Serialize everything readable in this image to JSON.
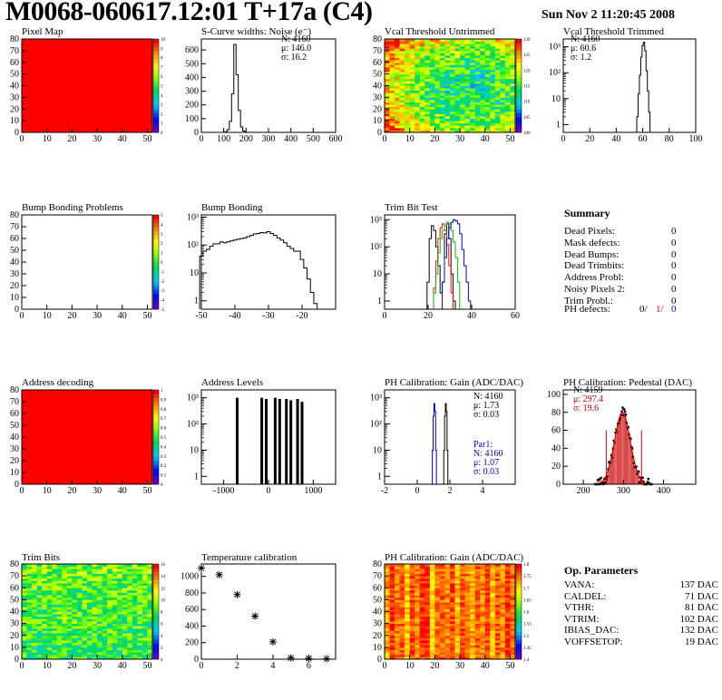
{
  "header": {
    "title": "M0068-060617.12:01 T+17a (C4)",
    "date": "Sun Nov  2 11:20:45 2008"
  },
  "colors": {
    "red": "#ff0000",
    "green_line": "#00c000",
    "blue_line": "#0000cc",
    "fit_red": "#cc0000"
  },
  "palette_names": [
    "purple",
    "blue",
    "cyan",
    "green",
    "yellow",
    "orange",
    "red"
  ],
  "chart_data": [
    {
      "id": "pixel-map",
      "type": "heatmap",
      "title": "Pixel Map",
      "xlim": [
        0,
        52
      ],
      "ylim": [
        0,
        80
      ],
      "xticks": [
        0,
        10,
        20,
        30,
        40,
        50
      ],
      "yticks": [
        0,
        10,
        20,
        30,
        40,
        50,
        60,
        70,
        80
      ],
      "fill": "uniform-max",
      "zlim": [
        0,
        10
      ],
      "zticks": [
        "0",
        "1",
        "2",
        "3",
        "4",
        "5",
        "6",
        "7",
        "8",
        "9",
        "10"
      ]
    },
    {
      "id": "scurve-noise",
      "type": "histogram",
      "title": "S-Curve widths: Noise (e⁻)",
      "xlim": [
        0,
        600
      ],
      "ylim": [
        0,
        680
      ],
      "log_y": false,
      "xticks": [
        0,
        100,
        200,
        300,
        400,
        500,
        600
      ],
      "yticks": [
        0,
        100,
        200,
        300,
        400,
        500,
        600
      ],
      "series": [
        {
          "x": [
            100,
            110,
            120,
            130,
            140,
            150,
            160,
            170,
            180,
            190,
            200
          ],
          "y": [
            0,
            5,
            20,
            80,
            280,
            640,
            420,
            160,
            40,
            10,
            0
          ]
        }
      ],
      "stats": {
        "entries": "N: 4160",
        "mean": "μ: 146.0",
        "sigma": "σ: 16.2"
      }
    },
    {
      "id": "vcal-untrimmed",
      "type": "heatmap",
      "title": "Vcal Threshold Untrimmed",
      "xlim": [
        0,
        52
      ],
      "ylim": [
        0,
        80
      ],
      "xticks": [
        0,
        10,
        20,
        30,
        40,
        50
      ],
      "yticks": [
        0,
        10,
        20,
        30,
        40,
        50,
        60,
        70,
        80
      ],
      "fill": "noisy-center-low",
      "zlim": [
        95,
        130
      ],
      "zticks": [
        "100",
        "105",
        "110",
        "115",
        "120",
        "125",
        "130"
      ]
    },
    {
      "id": "vcal-trimmed",
      "type": "histogram",
      "title": "Vcal Threshold Trimmed",
      "xlim": [
        0,
        100
      ],
      "ylim": [
        0.5,
        2000
      ],
      "log_y": true,
      "xticks": [
        0,
        20,
        40,
        60,
        80,
        100
      ],
      "ytick_labels": [
        "1",
        "10",
        "10²",
        "10³"
      ],
      "series": [
        {
          "x": [
            55,
            56,
            57,
            58,
            59,
            60,
            61,
            62,
            63,
            64,
            65,
            66
          ],
          "y": [
            0.5,
            2,
            15,
            80,
            400,
            1100,
            1500,
            700,
            120,
            20,
            3,
            0.5
          ]
        }
      ],
      "stats": {
        "entries": "N: 4160",
        "mean": "μ: 60.6",
        "sigma": "σ:  1.2"
      }
    },
    {
      "id": "bump-problems",
      "type": "heatmap",
      "title": "Bump Bonding Problems",
      "xlim": [
        0,
        52
      ],
      "ylim": [
        0,
        80
      ],
      "xticks": [
        0,
        10,
        20,
        30,
        40,
        50
      ],
      "yticks": [
        0,
        10,
        20,
        30,
        40,
        50,
        60,
        70,
        80
      ],
      "fill": "empty",
      "zlim": [
        -5,
        5
      ],
      "zticks": [
        "-5",
        "-4",
        "-3",
        "-2",
        "-1",
        "0",
        "1",
        "2",
        "3",
        "4",
        "5"
      ]
    },
    {
      "id": "bump-bonding",
      "type": "histogram",
      "title": "Bump Bonding",
      "xlim": [
        -50,
        -10
      ],
      "ylim": [
        0.5,
        1200
      ],
      "log_y": true,
      "xticks": [
        -50,
        -40,
        -30,
        -20
      ],
      "ytick_labels": [
        "1",
        "10",
        "10²",
        "10³"
      ],
      "series": [
        {
          "x": [
            -50,
            -49,
            -48,
            -47,
            -46,
            -45,
            -44,
            -43,
            -42,
            -41,
            -40,
            -39,
            -38,
            -37,
            -36,
            -35,
            -34,
            -33,
            -32,
            -31,
            -30,
            -29,
            -28,
            -27,
            -26,
            -25,
            -24,
            -23,
            -22,
            -21,
            -20,
            -19,
            -18,
            -17,
            -16,
            -15,
            -14
          ],
          "y": [
            40,
            60,
            70,
            90,
            110,
            110,
            130,
            120,
            130,
            140,
            150,
            160,
            170,
            180,
            200,
            220,
            250,
            260,
            280,
            270,
            300,
            260,
            220,
            180,
            150,
            120,
            90,
            75,
            60,
            60,
            30,
            15,
            6,
            2,
            0.8,
            0.5,
            0
          ]
        }
      ]
    },
    {
      "id": "trim-bit-test",
      "type": "histogram",
      "title": "Trim Bit Test",
      "xlim": [
        0,
        60
      ],
      "ylim": [
        0.5,
        1500
      ],
      "log_y": true,
      "xticks": [
        0,
        20,
        40,
        60
      ],
      "ytick_labels": [
        "1",
        "10",
        "10²",
        "10³"
      ],
      "series": [
        {
          "color": "black",
          "x": [
            19,
            20,
            21,
            22,
            23,
            24,
            25,
            26,
            27,
            28,
            29,
            30,
            31,
            32,
            33,
            34
          ],
          "y": [
            0.5,
            5,
            200,
            600,
            400,
            100,
            20,
            2,
            5,
            300,
            700,
            200,
            10,
            1,
            0.5,
            0
          ]
        },
        {
          "color": "red",
          "x": [
            22,
            23,
            24,
            25,
            26,
            27,
            28,
            29,
            30,
            31,
            32,
            33
          ],
          "y": [
            0.5,
            3,
            30,
            200,
            500,
            700,
            400,
            120,
            20,
            2,
            0.5,
            0
          ]
        },
        {
          "color": "green",
          "x": [
            22,
            23,
            24,
            25,
            26,
            27,
            28,
            29,
            30,
            31,
            32,
            33,
            34,
            35,
            36
          ],
          "y": [
            0.5,
            2,
            10,
            60,
            200,
            400,
            600,
            800,
            700,
            400,
            150,
            40,
            5,
            0.5,
            0
          ]
        },
        {
          "color": "blue",
          "x": [
            26,
            27,
            28,
            29,
            30,
            31,
            32,
            33,
            34,
            35,
            36,
            37,
            38,
            39,
            40,
            41
          ],
          "y": [
            0.5,
            5,
            40,
            200,
            500,
            800,
            1000,
            900,
            700,
            300,
            80,
            20,
            5,
            1,
            0.5,
            0
          ]
        }
      ]
    },
    {
      "id": "address-decoding",
      "type": "heatmap",
      "title": "Address decoding",
      "xlim": [
        0,
        52
      ],
      "ylim": [
        0,
        80
      ],
      "xticks": [
        0,
        10,
        20,
        30,
        40,
        50
      ],
      "yticks": [
        0,
        10,
        20,
        30,
        40,
        50,
        60,
        70,
        80
      ],
      "fill": "uniform-max",
      "zlim": [
        0,
        1
      ],
      "zticks": [
        "0",
        "0.1",
        "0.2",
        "0.3",
        "0.4",
        "0.5",
        "0.6",
        "0.7",
        "0.8",
        "0.9",
        "1"
      ]
    },
    {
      "id": "address-levels",
      "type": "histogram",
      "title": "Address Levels",
      "xlim": [
        -1500,
        1500
      ],
      "ylim": [
        0.5,
        2000
      ],
      "log_y": true,
      "xticks": [
        -1000,
        0,
        1000
      ],
      "ytick_labels": [
        "1",
        "10",
        "10²",
        "10³"
      ],
      "spikes": [
        -700,
        -150,
        -50,
        150,
        250,
        400,
        500,
        650,
        750
      ],
      "spike_heights": [
        1000,
        1000,
        900,
        1000,
        900,
        900,
        800,
        900,
        700
      ]
    },
    {
      "id": "ph-gain",
      "type": "histogram",
      "title": "PH Calibration: Gain (ADC/DAC)",
      "xlim": [
        -2,
        6
      ],
      "ylim": [
        0.5,
        2000
      ],
      "log_y": true,
      "xticks": [
        -2,
        0,
        2,
        4
      ],
      "ytick_labels": [
        "1",
        "10",
        "10²",
        "10³"
      ],
      "series": [
        {
          "color": "black",
          "x": [
            1.6,
            1.65,
            1.7,
            1.75,
            1.8,
            1.85,
            1.9
          ],
          "y": [
            0.5,
            10,
            200,
            600,
            300,
            10,
            0.5
          ]
        },
        {
          "color": "blue",
          "x": [
            0.9,
            0.95,
            1.0,
            1.05,
            1.1,
            1.15,
            1.2
          ],
          "y": [
            0.5,
            10,
            200,
            600,
            300,
            10,
            0.5
          ]
        }
      ],
      "stats": {
        "entries": "N: 4160",
        "mean": "μ: 1.73",
        "sigma": "σ: 0.03"
      },
      "stats2": {
        "name": "Par1:",
        "entries": "N: 4160",
        "mean": "μ: 1.07",
        "sigma": "σ: 0.03"
      }
    },
    {
      "id": "ph-pedestal",
      "type": "histogram",
      "title": "PH Calibration: Pedestal (DAC)",
      "xlim": [
        150,
        480
      ],
      "ylim": [
        0,
        105
      ],
      "log_y": false,
      "xticks": [
        200,
        300,
        400
      ],
      "yticks": [
        0,
        20,
        40,
        60,
        80,
        100
      ],
      "fit_mean": 297.4,
      "fit_sigma": 19.6,
      "peak": 80,
      "cut_lines": [
        257,
        345
      ],
      "stats": {
        "entries": "N: 4159",
        "mean": "μ: 297.4",
        "sigma": "σ: 19.6"
      }
    },
    {
      "id": "trim-bits",
      "type": "heatmap",
      "title": "Trim Bits",
      "xlim": [
        0,
        52
      ],
      "ylim": [
        0,
        80
      ],
      "xticks": [
        0,
        10,
        20,
        30,
        40,
        50
      ],
      "yticks": [
        0,
        10,
        20,
        30,
        40,
        50,
        60,
        70,
        80
      ],
      "fill": "noisy-mid",
      "zlim": [
        0,
        16
      ],
      "zticks": [
        "0",
        "2",
        "4",
        "6",
        "8",
        "10",
        "12",
        "14",
        "16"
      ]
    },
    {
      "id": "temperature",
      "type": "scatter",
      "title": "Temperature calibration",
      "xlim": [
        0,
        7.5
      ],
      "ylim": [
        0,
        1150
      ],
      "xticks": [
        0,
        2,
        4,
        6
      ],
      "yticks": [
        0,
        200,
        400,
        600,
        800,
        1000
      ],
      "x": [
        0,
        1,
        2,
        3,
        4,
        5,
        6,
        7
      ],
      "y": [
        1100,
        1020,
        780,
        520,
        210,
        15,
        10,
        5
      ]
    },
    {
      "id": "ph-gain-map",
      "type": "heatmap",
      "title": "PH Calibration: Gain (ADC/DAC)",
      "xlim": [
        0,
        52
      ],
      "ylim": [
        0,
        80
      ],
      "xticks": [
        0,
        10,
        20,
        30,
        40,
        50
      ],
      "yticks": [
        0,
        10,
        20,
        30,
        40,
        50,
        60,
        70,
        80
      ],
      "fill": "columns-high",
      "zlim": [
        1.4,
        1.85
      ],
      "zticks": [
        "1.4",
        "1.45",
        "1.5",
        "1.55",
        "1.6",
        "1.65",
        "1.7",
        "1.75",
        "1.8"
      ]
    }
  ],
  "summary": {
    "heading": "Summary",
    "rows": [
      {
        "label": "Dead Pixels:",
        "value": "0"
      },
      {
        "label": "Mask defects:",
        "value": "0"
      },
      {
        "label": "Dead Bumps:",
        "value": "0"
      },
      {
        "label": "Dead Trimbits:",
        "value": "0"
      },
      {
        "label": "Address Probl:",
        "value": "0"
      },
      {
        "label": "Noisy Pixels 2:",
        "value": "0"
      },
      {
        "label": "Trim Probl.:",
        "value": "0"
      }
    ],
    "ph_label": "PH defects:",
    "ph_values": [
      "0/",
      "1/",
      "0"
    ]
  },
  "op_params": {
    "heading": "Op. Parameters",
    "rows": [
      {
        "label": "VANA:",
        "value": "137 DAC"
      },
      {
        "label": "CALDEL:",
        "value": "71 DAC"
      },
      {
        "label": "VTHR:",
        "value": "81 DAC"
      },
      {
        "label": "VTRIM:",
        "value": "102 DAC"
      },
      {
        "label": "IBIAS_DAC:",
        "value": "132 DAC"
      },
      {
        "label": "VOFFSETOP:",
        "value": "19 DAC"
      }
    ]
  }
}
